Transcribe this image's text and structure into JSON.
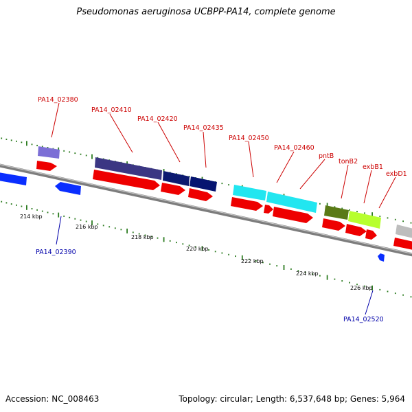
{
  "title": "Pseudomonas aeruginosa UCBPP-PA14, complete genome",
  "footer": {
    "accession": "Accession: NC_008463",
    "summary": "Topology: circular; Length: 6,537,648 bp; Genes: 5,964"
  },
  "colors": {
    "backbone": "#8c8c8c",
    "tick": "#2e7d22",
    "forward_label": "#cc0000",
    "reverse_label": "#0000aa",
    "red_gene": "#ee0000",
    "blue_gene": "#0a2eff"
  },
  "scale_labels": [
    "214 kbp",
    "216 kbp",
    "218 kbp",
    "220 kbp",
    "222 kbp",
    "224 kbp",
    "226 kbp"
  ],
  "forward_labels": [
    "PA14_02380",
    "PA14_02410",
    "PA14_02420",
    "PA14_02435",
    "PA14_02450",
    "PA14_02460",
    "pntB",
    "tonB2",
    "exbB1",
    "exbD1"
  ],
  "reverse_labels": [
    "PA14_02390",
    "PA14_02520"
  ]
}
